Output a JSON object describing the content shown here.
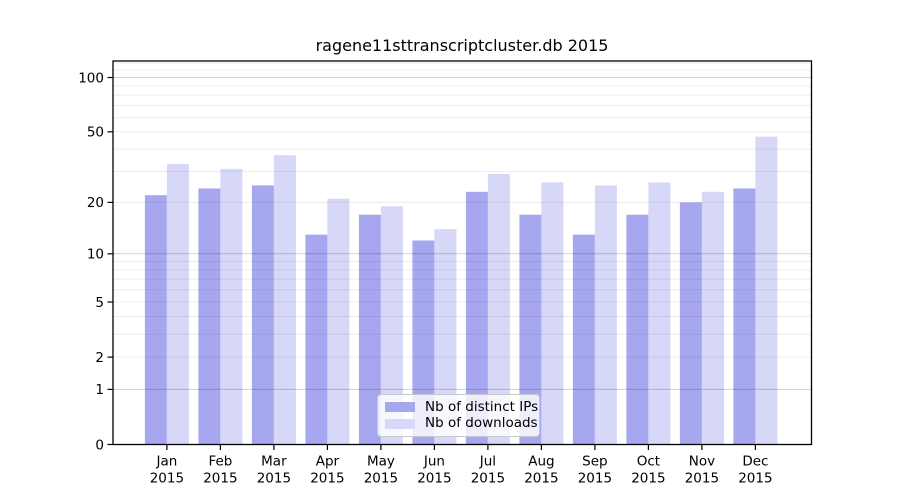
{
  "chart_data": {
    "type": "bar",
    "title": "ragene11sttranscriptcluster.db 2015",
    "categories": [
      "Jan",
      "Feb",
      "Mar",
      "Apr",
      "May",
      "Jun",
      "Jul",
      "Aug",
      "Sep",
      "Oct",
      "Nov",
      "Dec"
    ],
    "x_tick_year": "2015",
    "series": [
      {
        "name": "Nb of distinct IPs",
        "color": "#a7a7f0",
        "values": [
          22,
          24,
          25,
          13,
          17,
          12,
          23,
          17,
          13,
          17,
          20,
          24
        ]
      },
      {
        "name": "Nb of downloads",
        "color": "#d7d7f8",
        "values": [
          33,
          31,
          37,
          21,
          19,
          14,
          29,
          26,
          25,
          26,
          23,
          47
        ]
      }
    ],
    "xlabel": "",
    "ylabel": "",
    "yscale": "log1p",
    "ylim": [
      0,
      124
    ],
    "yticks": [
      0,
      1,
      2,
      5,
      10,
      20,
      50,
      100
    ],
    "y_major_gridlines": [
      1,
      10,
      100
    ],
    "y_minor_gridlines": [
      2,
      3,
      4,
      5,
      6,
      7,
      8,
      9,
      20,
      30,
      40,
      50,
      60,
      70,
      80,
      90,
      110,
      120
    ],
    "grid": "horizontal",
    "legend_position": "bottom-center",
    "bar_grouping": "side-by-side"
  }
}
